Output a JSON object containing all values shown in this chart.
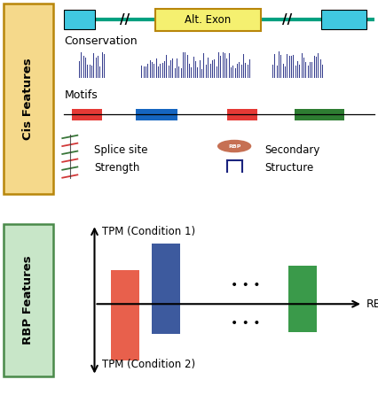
{
  "bg_color": "#ffffff",
  "cis_box_color": "#f5d98b",
  "cis_box_edge": "#b8860b",
  "rbp_box_color": "#c8e6c8",
  "rbp_box_edge": "#4a8a4a",
  "exon_fill": "#40c8e0",
  "exon_edge": "#000000",
  "alt_exon_fill": "#f5f070",
  "alt_exon_edge": "#b8860b",
  "alt_exon_text": "Alt. Exon",
  "line_color": "#00a080",
  "conservation_color": "#1a237e",
  "motif_red": "#e53935",
  "motif_blue": "#1565c0",
  "motif_green": "#2e7d32",
  "bar_red": "#e8604c",
  "bar_blue": "#3d5a9e",
  "bar_green": "#3a9a4a",
  "text_color": "#000000",
  "cis_label": "Cis Features",
  "rbp_label": "RBP Features",
  "conservation_label": "Conservation",
  "motifs_label": "Motifs",
  "splice_label1": "Splice site",
  "splice_label2": "Strength",
  "secondary_label1": "Secondary",
  "secondary_label2": "Structure",
  "tpm1_label": "TPM (Condition 1)",
  "tpm2_label": "TPM (Condition 2)",
  "rbp_axis_label": "RBP"
}
